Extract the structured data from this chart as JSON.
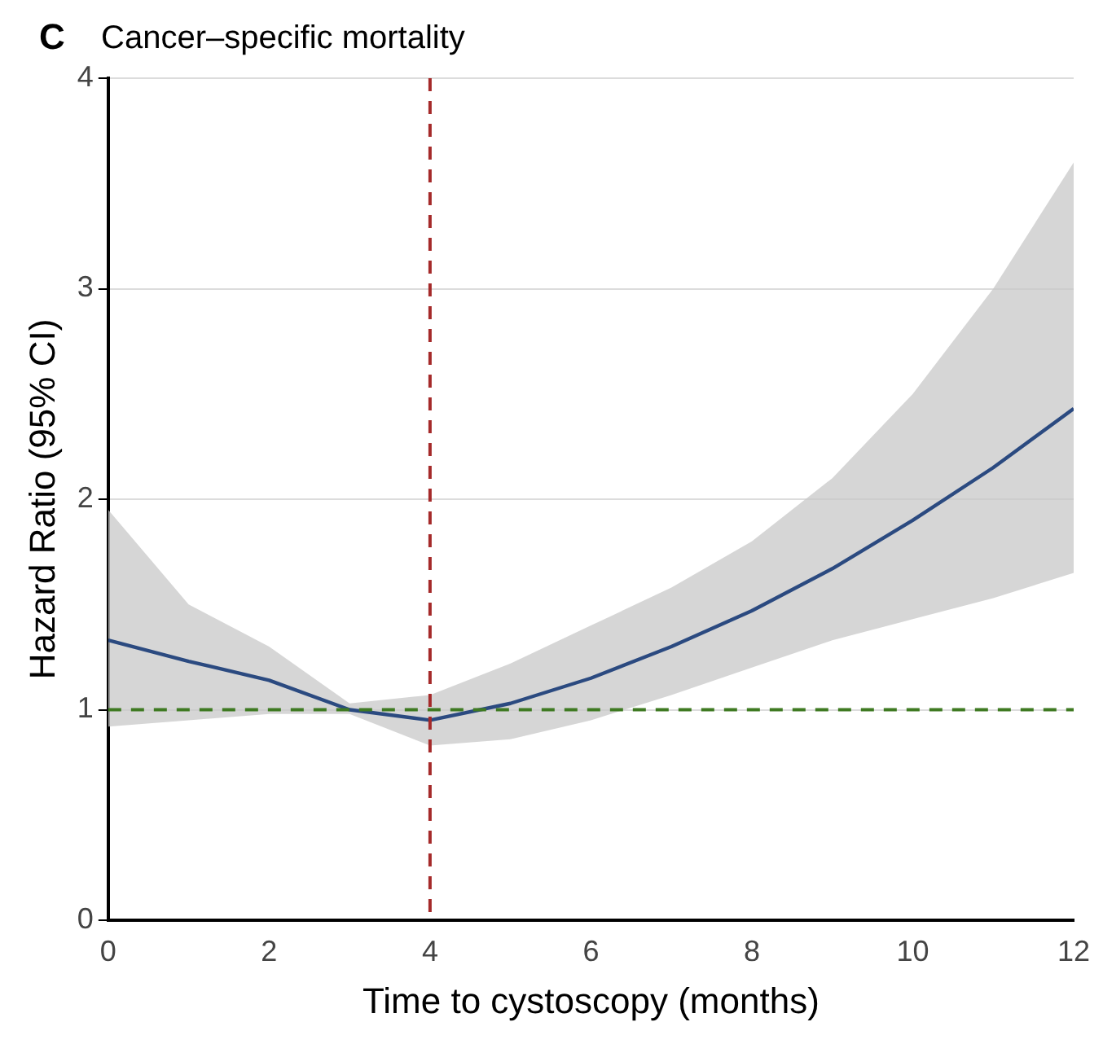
{
  "chart_data": {
    "type": "line",
    "title": "Cancer–specific mortality",
    "xlabel": "Time to cystoscopy (months)",
    "ylabel": "Hazard Ratio (95% CI)",
    "annotations": [
      "C"
    ],
    "x": [
      0,
      1,
      2,
      3,
      4,
      5,
      6,
      7,
      8,
      9,
      10,
      11,
      12
    ],
    "series": [
      {
        "color": "#2b4a80",
        "values": [
          1.33,
          1.23,
          1.14,
          1.0,
          0.95,
          1.03,
          1.15,
          1.3,
          1.47,
          1.67,
          1.9,
          2.15,
          2.43
        ],
        "lower": [
          0.92,
          0.95,
          0.98,
          0.98,
          0.83,
          0.86,
          0.95,
          1.07,
          1.2,
          1.33,
          1.43,
          1.53,
          1.65
        ],
        "upper": [
          1.95,
          1.5,
          1.3,
          1.03,
          1.07,
          1.22,
          1.4,
          1.58,
          1.8,
          2.1,
          2.5,
          3.0,
          3.6
        ]
      }
    ],
    "xlim": [
      0,
      12
    ],
    "xticks": [
      0,
      2,
      4,
      6,
      8,
      10,
      12
    ],
    "ylim": [
      0,
      4
    ],
    "yticks": [
      0,
      1,
      2,
      3,
      4
    ],
    "grid": "y",
    "ref_lines": [
      {
        "axis": "x",
        "value": 4,
        "color": "#a52a2a",
        "line_style": "dashed"
      },
      {
        "axis": "y",
        "value": 1,
        "color": "#3f7a22",
        "line_style": "dashed"
      }
    ],
    "marker": "none",
    "line_style": "solid"
  }
}
